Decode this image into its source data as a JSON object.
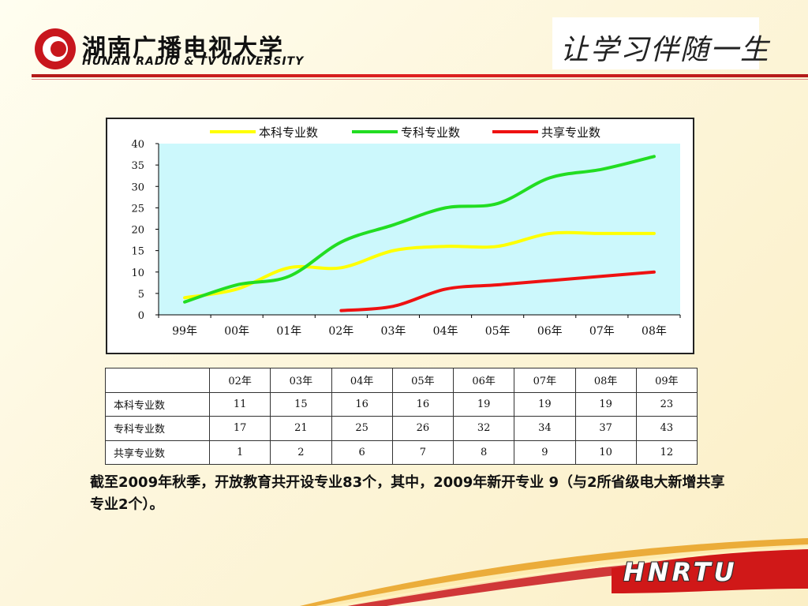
{
  "header": {
    "logo_cn": "湖南广播电视大学",
    "logo_en": "HUNAN RADIO & TV UNIVERSITY",
    "slogan": "让学习伴随一生"
  },
  "colors": {
    "series_undergrad": "#ffff00",
    "series_junior": "#22dd22",
    "series_shared": "#ee1111",
    "plot_bg": "#ccf8fc",
    "accent_red": "#c8161d"
  },
  "chart_data": {
    "type": "line",
    "categories": [
      "99年",
      "00年",
      "01年",
      "02年",
      "03年",
      "04年",
      "05年",
      "06年",
      "07年",
      "08年"
    ],
    "ylim": [
      0,
      40
    ],
    "yticks": [
      "0",
      "5",
      "10",
      "15",
      "20",
      "25",
      "30",
      "35",
      "40"
    ],
    "legend_position": "top",
    "grid": false,
    "series": [
      {
        "name": "本科专业数",
        "values": [
          4,
          6,
          11,
          11,
          15,
          16,
          16,
          19,
          19,
          19
        ]
      },
      {
        "name": "专科专业数",
        "values": [
          3,
          7,
          9,
          17,
          21,
          25,
          26,
          32,
          34,
          37
        ]
      },
      {
        "name": "共享专业数",
        "values": [
          null,
          null,
          null,
          1,
          2,
          6,
          7,
          8,
          9,
          10
        ]
      }
    ]
  },
  "table": {
    "header": [
      "",
      "02年",
      "03年",
      "04年",
      "05年",
      "06年",
      "07年",
      "08年",
      "09年"
    ],
    "rows": [
      {
        "label": "本科专业数",
        "cells": [
          "11",
          "15",
          "16",
          "16",
          "19",
          "19",
          "19",
          "23"
        ]
      },
      {
        "label": "专科专业数",
        "cells": [
          "17",
          "21",
          "25",
          "26",
          "32",
          "34",
          "37",
          "43"
        ]
      },
      {
        "label": "共享专业数",
        "cells": [
          "1",
          "2",
          "6",
          "7",
          "8",
          "9",
          "10",
          "12"
        ]
      }
    ]
  },
  "footnote": "截至2009年秋季，开放教育共开设专业83个，其中，2009年新开专业 9（与2所省级电大新增共享专业2个）。",
  "brand": "HNRTU"
}
